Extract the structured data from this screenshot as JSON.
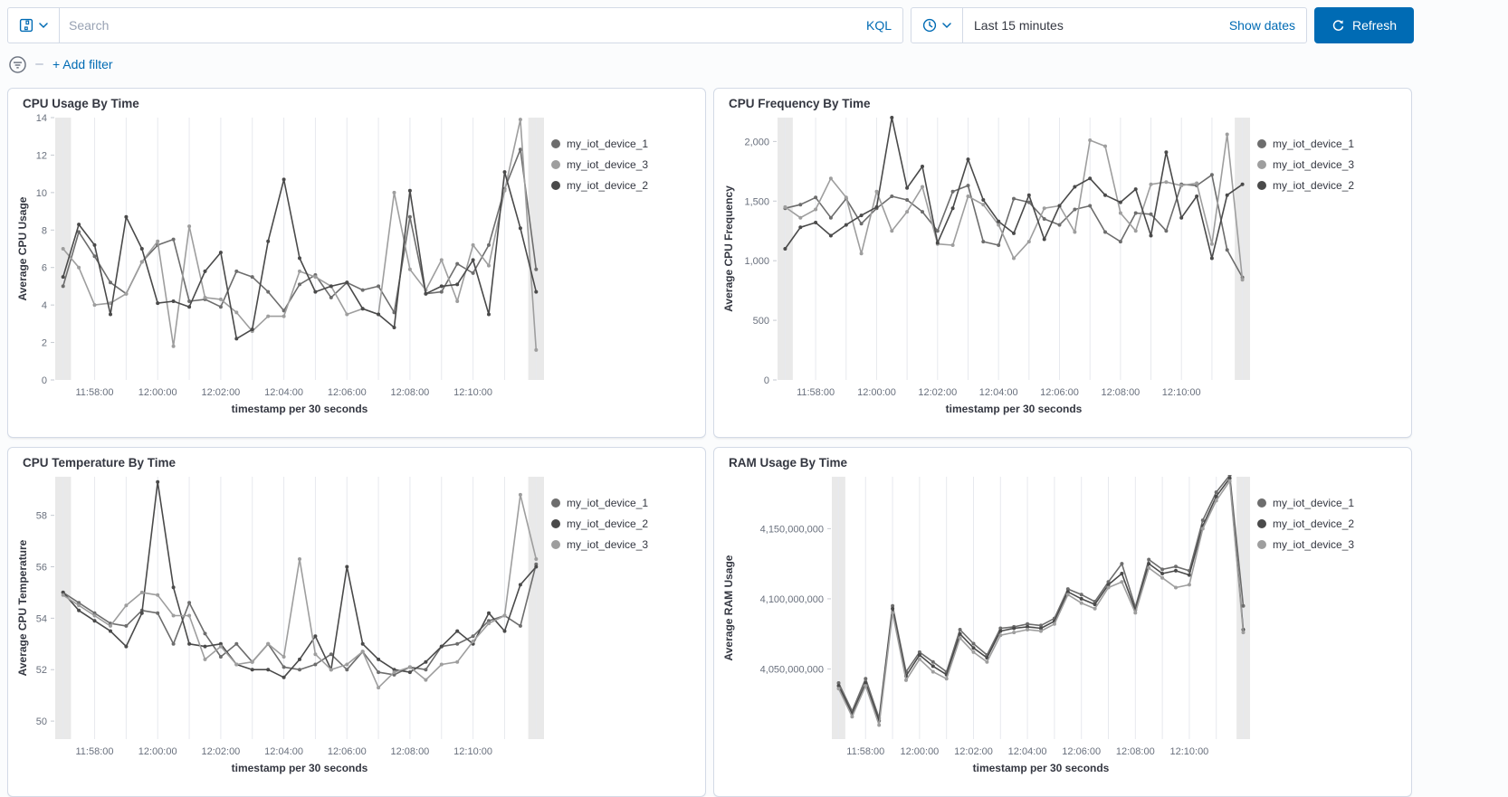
{
  "top_bar": {
    "search": {
      "placeholder": "Search",
      "query_language_label": "KQL"
    },
    "time_picker": {
      "value": "Last 15 minutes",
      "show_dates_label": "Show dates"
    },
    "refresh_label": "Refresh",
    "add_filter_label": "+ Add filter"
  },
  "colors": {
    "accent_blue": "#006BB4",
    "panel_border": "#d3dae6",
    "grid_line": "#e7e9ee",
    "partial_bucket_band": "#e2e2e2",
    "device_1": "#6d6d6d",
    "device_2": "#4a4a4a",
    "device_3": "#9e9e9e"
  },
  "chart_data": [
    {
      "type": "line",
      "title": "CPU Usage By Time",
      "ylabel": "Average CPU Usage",
      "xlabel": "timestamp per 30 seconds",
      "x_tick_labels": [
        "11:58:00",
        "12:00:00",
        "12:02:00",
        "12:04:00",
        "12:06:00",
        "12:08:00",
        "12:10:00"
      ],
      "x_tick_indices": [
        2,
        6,
        10,
        14,
        18,
        22,
        26
      ],
      "y_ticks": [
        0,
        2,
        4,
        6,
        8,
        10,
        12,
        14
      ],
      "y_tick_labels": [
        "0",
        "2",
        "4",
        "6",
        "8",
        "10",
        "12",
        "14"
      ],
      "ylim": [
        0,
        14
      ],
      "legend_position": "right",
      "grid": "vertical",
      "series": [
        {
          "name": "my_iot_device_1",
          "color": "#6d6d6d",
          "values": [
            5.0,
            7.9,
            6.6,
            5.2,
            4.6,
            6.3,
            7.2,
            7.5,
            4.2,
            4.3,
            3.9,
            5.8,
            5.5,
            4.7,
            3.7,
            5.1,
            5.6,
            4.4,
            5.2,
            4.8,
            5.0,
            3.6,
            8.7,
            4.6,
            4.7,
            6.2,
            5.7,
            7.2,
            10.2,
            12.3,
            5.9
          ]
        },
        {
          "name": "my_iot_device_3",
          "color": "#9e9e9e",
          "values": [
            7.0,
            6.0,
            4.0,
            4.1,
            4.6,
            6.3,
            7.4,
            1.8,
            8.2,
            4.4,
            4.3,
            3.6,
            2.6,
            3.4,
            3.4,
            5.8,
            5.5,
            5.0,
            3.5,
            3.8,
            3.5,
            10.0,
            5.9,
            4.8,
            6.4,
            4.2,
            7.2,
            6.1,
            10.1,
            13.9,
            1.6
          ]
        },
        {
          "name": "my_iot_device_2",
          "color": "#4a4a4a",
          "values": [
            5.5,
            8.3,
            7.2,
            3.5,
            8.7,
            7.0,
            4.1,
            4.2,
            3.9,
            5.8,
            6.8,
            2.2,
            2.7,
            7.4,
            10.7,
            6.5,
            4.7,
            5.0,
            5.2,
            3.8,
            3.5,
            2.8,
            10.1,
            4.6,
            5.0,
            5.1,
            6.4,
            3.5,
            11.1,
            8.1,
            4.7
          ]
        }
      ]
    },
    {
      "type": "line",
      "title": "CPU Frequency By Time",
      "ylabel": "Average CPU Frequency",
      "xlabel": "timestamp per 30 seconds",
      "x_tick_labels": [
        "11:58:00",
        "12:00:00",
        "12:02:00",
        "12:04:00",
        "12:06:00",
        "12:08:00",
        "12:10:00"
      ],
      "x_tick_indices": [
        2,
        6,
        10,
        14,
        18,
        22,
        26
      ],
      "y_ticks": [
        0,
        500,
        1000,
        1500,
        2000
      ],
      "y_tick_labels": [
        "0",
        "500",
        "1,000",
        "1,500",
        "2,000"
      ],
      "ylim": [
        0,
        2200
      ],
      "legend_position": "right",
      "grid": "vertical",
      "series": [
        {
          "name": "my_iot_device_1",
          "color": "#6d6d6d",
          "values": [
            1440,
            1470,
            1530,
            1360,
            1520,
            1310,
            1440,
            1540,
            1510,
            1410,
            1250,
            1580,
            1630,
            1160,
            1130,
            1520,
            1490,
            1350,
            1300,
            1430,
            1460,
            1240,
            1160,
            1400,
            1390,
            1250,
            1640,
            1630,
            1720,
            1090,
            860
          ]
        },
        {
          "name": "my_iot_device_3",
          "color": "#9e9e9e",
          "values": [
            1450,
            1360,
            1430,
            1690,
            1530,
            1060,
            1580,
            1250,
            1410,
            1620,
            1140,
            1130,
            1540,
            1470,
            1300,
            1020,
            1160,
            1440,
            1460,
            1240,
            2010,
            1960,
            1400,
            1250,
            1640,
            1660,
            1630,
            1650,
            1140,
            2060,
            840
          ]
        },
        {
          "name": "my_iot_device_2",
          "color": "#4a4a4a",
          "values": [
            1100,
            1280,
            1320,
            1210,
            1300,
            1380,
            1450,
            2200,
            1610,
            1790,
            1150,
            1440,
            1850,
            1510,
            1330,
            1230,
            1550,
            1180,
            1460,
            1620,
            1690,
            1550,
            1490,
            1600,
            1210,
            1910,
            1360,
            1540,
            1020,
            1550,
            1640
          ]
        }
      ]
    },
    {
      "type": "line",
      "title": "CPU Temperature By Time",
      "ylabel": "Average CPU Temperature",
      "xlabel": "timestamp per 30 seconds",
      "x_tick_labels": [
        "11:58:00",
        "12:00:00",
        "12:02:00",
        "12:04:00",
        "12:06:00",
        "12:08:00",
        "12:10:00"
      ],
      "x_tick_indices": [
        2,
        6,
        10,
        14,
        18,
        22,
        26
      ],
      "y_ticks": [
        50,
        52,
        54,
        56,
        58
      ],
      "y_tick_labels": [
        "50",
        "52",
        "54",
        "56",
        "58"
      ],
      "ylim": [
        49.3,
        59.5
      ],
      "legend_position": "right",
      "grid": "vertical",
      "series": [
        {
          "name": "my_iot_device_1",
          "color": "#6d6d6d",
          "values": [
            55.0,
            54.6,
            54.2,
            53.8,
            53.7,
            54.3,
            54.2,
            53.0,
            54.6,
            53.4,
            52.5,
            53.0,
            52.3,
            53.0,
            52.1,
            52.0,
            52.2,
            52.6,
            52.0,
            52.7,
            51.9,
            51.8,
            52.1,
            52.0,
            52.9,
            53.0,
            53.3,
            53.9,
            54.1,
            53.7,
            56.1
          ]
        },
        {
          "name": "my_iot_device_2",
          "color": "#4a4a4a",
          "values": [
            55.0,
            54.3,
            53.9,
            53.5,
            52.9,
            54.2,
            59.3,
            55.2,
            53.0,
            52.9,
            53.0,
            52.2,
            52.0,
            52.0,
            51.7,
            52.4,
            53.3,
            52.0,
            56.0,
            53.0,
            52.4,
            52.0,
            51.9,
            52.3,
            52.9,
            53.5,
            53.0,
            54.2,
            53.5,
            55.3,
            56.0
          ]
        },
        {
          "name": "my_iot_device_3",
          "color": "#9e9e9e",
          "values": [
            54.9,
            54.5,
            54.1,
            53.7,
            54.5,
            55.0,
            54.9,
            54.1,
            54.1,
            52.4,
            52.9,
            52.2,
            52.3,
            53.0,
            52.5,
            56.3,
            52.6,
            52.0,
            52.2,
            52.7,
            51.3,
            51.9,
            52.1,
            51.6,
            52.2,
            52.3,
            53.1,
            53.8,
            54.1,
            58.8,
            56.3
          ]
        }
      ]
    },
    {
      "type": "line",
      "title": "RAM Usage By Time",
      "ylabel": "Average RAM Usage",
      "xlabel": "timestamp per 30 seconds",
      "x_tick_labels": [
        "11:58:00",
        "12:00:00",
        "12:02:00",
        "12:04:00",
        "12:06:00",
        "12:08:00",
        "12:10:00"
      ],
      "x_tick_indices": [
        2,
        6,
        10,
        14,
        18,
        22,
        26
      ],
      "y_ticks": [
        4050000000,
        4100000000,
        4150000000
      ],
      "y_tick_labels": [
        "4,050,000,000",
        "4,100,000,000",
        "4,150,000,000"
      ],
      "ylim": [
        4000000000,
        4187000000
      ],
      "legend_position": "right",
      "grid": "vertical",
      "series": [
        {
          "name": "my_iot_device_1",
          "color": "#6d6d6d",
          "values": [
            4040000000,
            4020000000,
            4043000000,
            4015000000,
            4095000000,
            4048000000,
            4062000000,
            4055000000,
            4048000000,
            4078000000,
            4068000000,
            4060000000,
            4079000000,
            4080000000,
            4082000000,
            4081000000,
            4086000000,
            4107000000,
            4103000000,
            4098000000,
            4112000000,
            4125000000,
            4094000000,
            4128000000,
            4121000000,
            4123000000,
            4120000000,
            4156000000,
            4176000000,
            4188000000,
            4095000000
          ]
        },
        {
          "name": "my_iot_device_2",
          "color": "#4a4a4a",
          "values": [
            4038000000,
            4018000000,
            4040000000,
            4013000000,
            4093000000,
            4045000000,
            4060000000,
            4052000000,
            4046000000,
            4075000000,
            4065000000,
            4058000000,
            4077000000,
            4079000000,
            4080000000,
            4079000000,
            4084000000,
            4105000000,
            4100000000,
            4096000000,
            4110000000,
            4118000000,
            4092000000,
            4125000000,
            4118000000,
            4120000000,
            4117000000,
            4152000000,
            4173000000,
            4186000000,
            4078000000
          ]
        },
        {
          "name": "my_iot_device_3",
          "color": "#9e9e9e",
          "values": [
            4036000000,
            4016000000,
            4038000000,
            4010000000,
            4090000000,
            4042000000,
            4057000000,
            4048000000,
            4043000000,
            4072000000,
            4062000000,
            4055000000,
            4074000000,
            4076000000,
            4078000000,
            4077000000,
            4082000000,
            4103000000,
            4097000000,
            4093000000,
            4108000000,
            4112000000,
            4090000000,
            4122000000,
            4115000000,
            4108000000,
            4110000000,
            4150000000,
            4170000000,
            4184000000,
            4076000000
          ]
        }
      ]
    }
  ]
}
